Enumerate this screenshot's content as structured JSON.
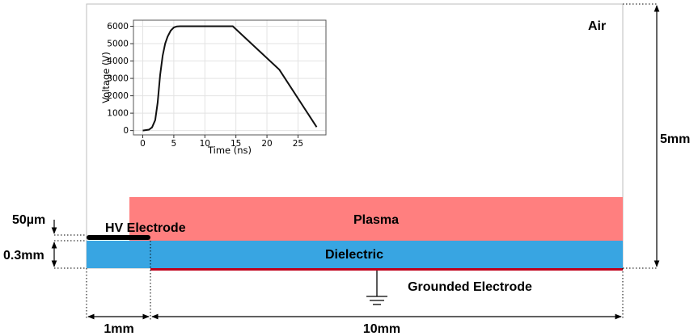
{
  "regions": {
    "air": "Air",
    "plasma": "Plasma",
    "hv_electrode": "HV Electrode",
    "dielectric": "Dielectric",
    "grounded_electrode": "Grounded Electrode"
  },
  "dimensions": {
    "height": "5mm",
    "electrode_thickness": "50µm",
    "dielectric_thickness": "0.3mm",
    "electrode_width": "1mm",
    "plasma_length": "10mm"
  },
  "colors": {
    "plasma": "#ff7f7f",
    "dielectric": "#38a5e2",
    "hv_electrode": "#000000",
    "grounded_electrode": "#c0001a",
    "domain_border": "#bdbdbd"
  },
  "chart_data": {
    "type": "line",
    "xlabel": "Time (ns)",
    "ylabel": "Voltage (V)",
    "xlim": [
      -1.5,
      29.5
    ],
    "ylim": [
      -250,
      6350
    ],
    "xticks": [
      0,
      5,
      10,
      15,
      20,
      25
    ],
    "yticks": [
      0,
      1000,
      2000,
      3000,
      4000,
      5000,
      6000
    ],
    "grid": true,
    "series": [
      {
        "x": [
          0,
          1.0,
          1.5,
          2.0,
          2.4,
          2.8,
          3.2,
          3.6,
          4.0,
          4.5,
          5.0,
          5.5,
          6.0,
          14.5,
          22.0,
          28.0
        ],
        "y": [
          0,
          50,
          180,
          600,
          1600,
          3200,
          4300,
          5000,
          5400,
          5750,
          5930,
          5990,
          6000,
          6000,
          3500,
          200
        ]
      }
    ]
  }
}
